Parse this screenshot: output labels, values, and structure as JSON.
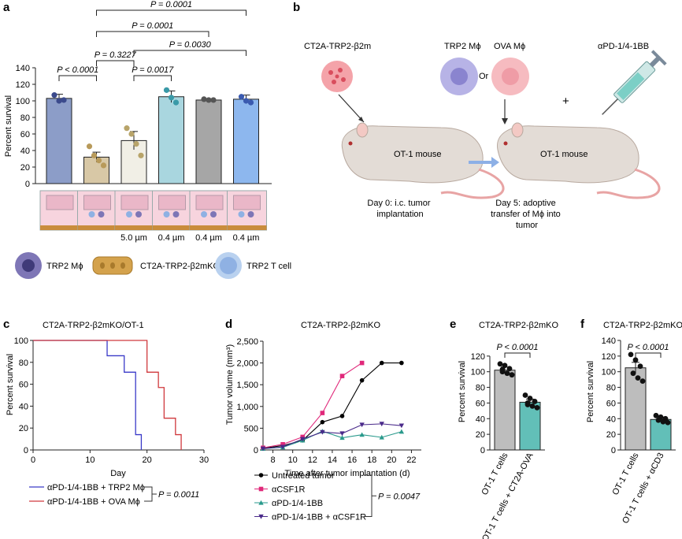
{
  "panel_labels": {
    "a": "a",
    "b": "b",
    "c": "c",
    "d": "d",
    "e": "e",
    "f": "f"
  },
  "colors": {
    "bar1": "#8c9dc8",
    "bar2": "#d8c8a6",
    "bar3": "#f1efe6",
    "bar4": "#a9d6df",
    "bar5": "#a6a6a6",
    "bar6": "#8db7ee",
    "series_untreated": "#000000",
    "series_acsf1r": "#e0287a",
    "series_apd1": "#2a9a8c",
    "series_combo": "#4a2a8a",
    "km_trp2": "#3a3ac8",
    "km_ova": "#d0393d",
    "bar_gray": "#bdbdbd",
    "bar_teal": "#62bfb8"
  },
  "panel_a": {
    "chart_data": {
      "type": "bar",
      "ylabel": "Percent survival",
      "ylim": [
        0,
        140
      ],
      "yticks": [
        0,
        20,
        40,
        60,
        80,
        100,
        120,
        140
      ],
      "bars": [
        {
          "value": 103,
          "err": 5,
          "points": [
            107,
            100,
            101
          ]
        },
        {
          "value": 32,
          "err": 6,
          "points": [
            45,
            34,
            28,
            22
          ]
        },
        {
          "value": 52,
          "err": 11,
          "points": [
            67,
            60,
            48,
            34
          ]
        },
        {
          "value": 105,
          "err": 7,
          "points": [
            113,
            104,
            98
          ]
        },
        {
          "value": 101,
          "err": 1,
          "points": [
            102,
            101,
            101
          ]
        },
        {
          "value": 102,
          "err": 5,
          "points": [
            105,
            100,
            98
          ]
        }
      ],
      "comparisons": [
        {
          "label": "P < 0.0001",
          "from": 1,
          "to": 2
        },
        {
          "label": "P = 0.3227",
          "from": 2,
          "to": 3
        },
        {
          "label": "P = 0.0017",
          "from": 3,
          "to": 4
        },
        {
          "label": "P = 0.0030",
          "from": 3,
          "to": 6
        },
        {
          "label": "P = 0.0001",
          "from": 2,
          "to": 5
        },
        {
          "label": "P = 0.0001",
          "from": 2,
          "to": 6
        }
      ],
      "pore_labels": [
        "5.0 µm",
        "0.4 µm",
        "0.4 µm",
        "0.4 µm"
      ]
    },
    "legend": {
      "trp2_mphi": "TRP2 Mϕ",
      "ct2a": "CT2A-TRP2-β2mKO",
      "tcell": "TRP2 T cell"
    }
  },
  "panel_b": {
    "tumor_line": "CT2A-TRP2-β2m",
    "trp2": "TRP2 Mϕ",
    "ova": "OVA Mϕ",
    "or": "Or",
    "drug": "αPD-1/4-1BB",
    "plus": "+",
    "mouse1": "OT-1 mouse",
    "mouse2": "OT-1 mouse",
    "day0": [
      "Day 0: i.c. tumor",
      "implantation"
    ],
    "day5": [
      "Day 5: adoptive",
      "transfer of Mϕ into",
      "tumor"
    ]
  },
  "panel_c": {
    "chart_data": {
      "type": "line",
      "title": "CT2A-TRP2-β2mKO/OT-1",
      "xlabel": "Day",
      "ylabel": "Percent survival",
      "xlim": [
        0,
        30
      ],
      "ylim": [
        0,
        100
      ],
      "xticks": [
        0,
        10,
        20,
        30
      ],
      "yticks": [
        0,
        20,
        40,
        60,
        80,
        100
      ],
      "series": [
        {
          "name": "αPD-1/4-1BB + TRP2 Mϕ",
          "steps": [
            [
              0,
              100
            ],
            [
              13,
              100
            ],
            [
              13,
              86
            ],
            [
              16,
              86
            ],
            [
              16,
              71
            ],
            [
              18,
              71
            ],
            [
              18,
              14
            ],
            [
              19,
              14
            ],
            [
              19,
              0
            ]
          ]
        },
        {
          "name": "αPD-1/4-1BB + OVA Mϕ",
          "steps": [
            [
              0,
              100
            ],
            [
              20,
              100
            ],
            [
              20,
              71
            ],
            [
              22,
              71
            ],
            [
              22,
              57
            ],
            [
              23,
              57
            ],
            [
              23,
              29
            ],
            [
              25,
              29
            ],
            [
              25,
              14
            ],
            [
              26,
              14
            ],
            [
              26,
              0
            ]
          ]
        }
      ],
      "pvalue": "P = 0.0011"
    }
  },
  "panel_d": {
    "chart_data": {
      "type": "line",
      "title": "CT2A-TRP2-β2mKO",
      "xlabel": "Time after tumor implantation (d)",
      "ylabel": "Tumor volume (mm³)",
      "xlim": [
        7,
        23
      ],
      "ylim": [
        0,
        2500
      ],
      "xticks": [
        8,
        10,
        12,
        14,
        16,
        18,
        20,
        22
      ],
      "yticks": [
        0,
        500,
        1000,
        1500,
        2000,
        2500
      ],
      "ytick_labels": [
        "0",
        "500",
        "1,000",
        "1,500",
        "2,000",
        "2,500"
      ],
      "series": [
        {
          "name": "Untreated tumor",
          "x": [
            7,
            9,
            11,
            13,
            15,
            17,
            19,
            21
          ],
          "y": [
            40,
            100,
            220,
            640,
            780,
            1600,
            2000,
            2000
          ]
        },
        {
          "name": "αCSF1R",
          "x": [
            7,
            9,
            11,
            13,
            15,
            17
          ],
          "y": [
            50,
            130,
            300,
            850,
            1700,
            2000
          ]
        },
        {
          "name": "αPD-1/4-1BB",
          "x": [
            7,
            9,
            11,
            13,
            15,
            17,
            19,
            21
          ],
          "y": [
            30,
            60,
            220,
            430,
            280,
            350,
            290,
            420
          ]
        },
        {
          "name": "αPD-1/4-1BB + αCSF1R",
          "x": [
            7,
            9,
            11,
            13,
            15,
            17,
            19,
            21
          ],
          "y": [
            30,
            70,
            250,
            410,
            380,
            580,
            600,
            560
          ]
        }
      ],
      "pvalue": "P = 0.0047"
    }
  },
  "panel_e": {
    "chart_data": {
      "type": "bar",
      "title": "CT2A-TRP2-β2mKO",
      "ylabel": "Percent survival",
      "ylim": [
        0,
        140
      ],
      "yticks": [
        0,
        20,
        40,
        60,
        80,
        100,
        120
      ],
      "categories": [
        "OT-1 T cells",
        "OT-1 T cells + CT2A-OVA"
      ],
      "values": [
        102,
        61
      ],
      "errs": [
        4,
        4
      ],
      "points": [
        [
          110,
          108,
          104,
          100,
          98,
          96,
          103
        ],
        [
          70,
          66,
          62,
          60,
          56,
          54,
          58
        ]
      ],
      "pvalue": "P < 0.0001"
    }
  },
  "panel_f": {
    "chart_data": {
      "type": "bar",
      "title": "CT2A-TRP2-β2mKO",
      "ylabel": "Percent survival",
      "ylim": [
        0,
        140
      ],
      "yticks": [
        0,
        20,
        40,
        60,
        80,
        100,
        120,
        140
      ],
      "categories": [
        "OT-1 T cells",
        "OT-1 T cells + αCD3"
      ],
      "values": [
        105,
        39
      ],
      "errs": [
        7,
        3
      ],
      "points": [
        [
          122,
          115,
          107,
          98,
          92,
          88
        ],
        [
          44,
          42,
          40,
          38,
          36,
          35
        ]
      ],
      "pvalue": "P < 0.0001"
    }
  }
}
